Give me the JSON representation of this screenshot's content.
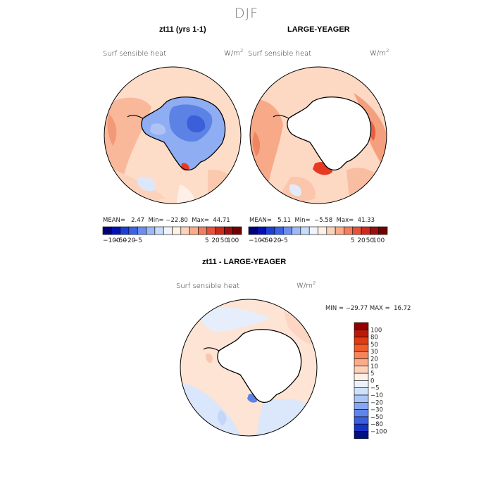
{
  "season": "DJF",
  "panels": [
    {
      "title": "zt11 (yrs 1-1)",
      "variable": "Surf sensible heat",
      "unit_base": "W/m",
      "unit_exp": "2",
      "stats": {
        "mean": "2.47",
        "min": "−22.80",
        "max": "44.71"
      }
    },
    {
      "title": "LARGE-YEAGER",
      "variable": "Surf sensible heat",
      "unit_base": "W/m",
      "unit_exp": "2",
      "stats": {
        "mean": "5.11",
        "min": "−5.58",
        "max": "41.33"
      }
    },
    {
      "title": "zt11 - LARGE-YEAGER",
      "variable": "Surf sensible heat",
      "unit_base": "W/m",
      "unit_exp": "2",
      "stats": {
        "min": "−29.77",
        "max": "16.72"
      }
    }
  ],
  "stat_labels": {
    "mean": "MEAN=",
    "min": "Min=",
    "max": "Max=",
    "min_upper": "MIN =",
    "max_upper": "MAX ="
  },
  "colorbar_h": {
    "colors": [
      "#00007a",
      "#0010b4",
      "#1c3fd6",
      "#3a63e6",
      "#6b8ef0",
      "#9db9f7",
      "#c9dcfb",
      "#eef4fe",
      "#fff0e6",
      "#fdd2bb",
      "#fbaa8a",
      "#f47e5e",
      "#e8513a",
      "#cd2a1c",
      "#9e0d0d",
      "#720000"
    ],
    "labels": [
      "−100",
      "−50",
      "−20",
      "−5",
      "5",
      "20",
      "50",
      "100"
    ]
  },
  "colorbar_v": {
    "colors": [
      "#900000",
      "#bb1a0a",
      "#e23a12",
      "#f25b2a",
      "#f7855a",
      "#fbab88",
      "#fdd0b8",
      "#fff0e6",
      "#eaf2fd",
      "#cfe1fb",
      "#a9c6f6",
      "#86a7f1",
      "#5f84ea",
      "#3b5fe0",
      "#1733c5",
      "#00107e"
    ],
    "labels": [
      "100",
      "80",
      "50",
      "30",
      "20",
      "10",
      "5",
      "0",
      "−5",
      "−10",
      "−20",
      "−30",
      "−50",
      "−80",
      "−100"
    ]
  }
}
